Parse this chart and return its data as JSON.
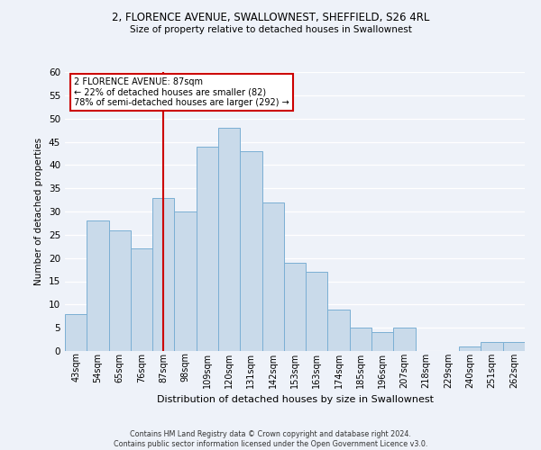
{
  "title1": "2, FLORENCE AVENUE, SWALLOWNEST, SHEFFIELD, S26 4RL",
  "title2": "Size of property relative to detached houses in Swallownest",
  "xlabel": "Distribution of detached houses by size in Swallownest",
  "ylabel": "Number of detached properties",
  "categories": [
    "43sqm",
    "54sqm",
    "65sqm",
    "76sqm",
    "87sqm",
    "98sqm",
    "109sqm",
    "120sqm",
    "131sqm",
    "142sqm",
    "153sqm",
    "163sqm",
    "174sqm",
    "185sqm",
    "196sqm",
    "207sqm",
    "218sqm",
    "229sqm",
    "240sqm",
    "251sqm",
    "262sqm"
  ],
  "values": [
    8,
    28,
    26,
    22,
    33,
    30,
    44,
    48,
    43,
    32,
    19,
    17,
    9,
    5,
    4,
    5,
    0,
    0,
    1,
    2,
    2
  ],
  "bar_color": "#c9daea",
  "bar_edge_color": "#7bafd4",
  "highlight_index": 4,
  "vline_color": "#cc0000",
  "ylim": [
    0,
    60
  ],
  "yticks": [
    0,
    5,
    10,
    15,
    20,
    25,
    30,
    35,
    40,
    45,
    50,
    55,
    60
  ],
  "annotation_text": "2 FLORENCE AVENUE: 87sqm\n← 22% of detached houses are smaller (82)\n78% of semi-detached houses are larger (292) →",
  "annotation_box_color": "#ffffff",
  "annotation_box_edgecolor": "#cc0000",
  "footer1": "Contains HM Land Registry data © Crown copyright and database right 2024.",
  "footer2": "Contains public sector information licensed under the Open Government Licence v3.0.",
  "background_color": "#eef2f9",
  "grid_color": "#ffffff"
}
